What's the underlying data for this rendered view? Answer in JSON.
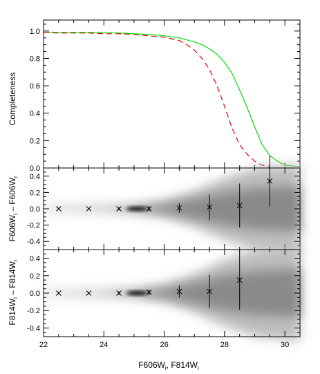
{
  "chart_data": [
    {
      "type": "line",
      "ylabel": "Completeness",
      "xlim": [
        22,
        30.5
      ],
      "ylim": [
        0,
        1.08
      ],
      "yticks": [
        0.0,
        0.2,
        0.4,
        0.6,
        0.8,
        1.0
      ],
      "series": [
        {
          "color": "#00dd00",
          "style": "solid",
          "x": [
            22.0,
            22.5,
            23.0,
            23.5,
            24.0,
            24.5,
            25.0,
            25.5,
            26.0,
            26.5,
            27.0,
            27.25,
            27.5,
            27.75,
            28.0,
            28.25,
            28.5,
            28.75,
            29.0,
            29.25,
            29.5,
            29.75,
            30.0,
            30.5
          ],
          "y": [
            0.99,
            0.99,
            0.99,
            0.99,
            0.99,
            0.985,
            0.98,
            0.975,
            0.965,
            0.95,
            0.92,
            0.9,
            0.87,
            0.83,
            0.77,
            0.69,
            0.57,
            0.44,
            0.3,
            0.17,
            0.09,
            0.05,
            0.02,
            0.01
          ]
        },
        {
          "color": "#dd0000",
          "style": "dashed",
          "x": [
            22.0,
            22.5,
            23.0,
            23.5,
            24.0,
            24.5,
            25.0,
            25.5,
            26.0,
            26.5,
            26.75,
            27.0,
            27.25,
            27.5,
            27.75,
            28.0,
            28.25,
            28.5,
            28.75,
            29.0,
            29.25,
            29.5
          ],
          "y": [
            0.99,
            0.985,
            0.985,
            0.985,
            0.98,
            0.98,
            0.975,
            0.965,
            0.955,
            0.93,
            0.9,
            0.86,
            0.8,
            0.72,
            0.6,
            0.45,
            0.29,
            0.17,
            0.1,
            0.05,
            0.02,
            0.01
          ]
        }
      ]
    },
    {
      "type": "scatter",
      "ylabel_html": [
        "F606W",
        "i",
        " – F606W",
        "r"
      ],
      "xlim": [
        22,
        30.5
      ],
      "ylim": [
        -0.5,
        0.5
      ],
      "yticks": [
        -0.4,
        -0.2,
        0.0,
        0.2,
        0.4
      ],
      "series": [
        {
          "marker": "x",
          "x": [
            22.5,
            23.5,
            24.5,
            25.5,
            26.5,
            27.5,
            28.5,
            29.5
          ],
          "y": [
            0.0,
            0.0,
            0.0,
            0.0,
            0.01,
            0.02,
            0.04,
            0.34
          ],
          "err": [
            0.01,
            0.01,
            0.02,
            0.03,
            0.06,
            0.16,
            0.27,
            0.31
          ]
        }
      ]
    },
    {
      "type": "scatter",
      "ylabel_html": [
        "F814W",
        "i",
        " – F814W",
        "r"
      ],
      "xlabel_html": [
        "F606W",
        "i",
        ", F814W",
        "i"
      ],
      "xlim": [
        22,
        30.5
      ],
      "ylim": [
        -0.5,
        0.5
      ],
      "yticks": [
        -0.4,
        -0.2,
        0.0,
        0.2,
        0.4
      ],
      "xticks": [
        22,
        24,
        26,
        28,
        30
      ],
      "series": [
        {
          "marker": "x",
          "x": [
            22.5,
            23.5,
            24.5,
            25.5,
            26.5,
            27.5,
            28.5
          ],
          "y": [
            0.0,
            0.0,
            0.0,
            0.01,
            0.02,
            0.02,
            0.15
          ],
          "err": [
            0.01,
            0.01,
            0.02,
            0.03,
            0.07,
            0.19,
            0.34
          ]
        }
      ]
    }
  ]
}
